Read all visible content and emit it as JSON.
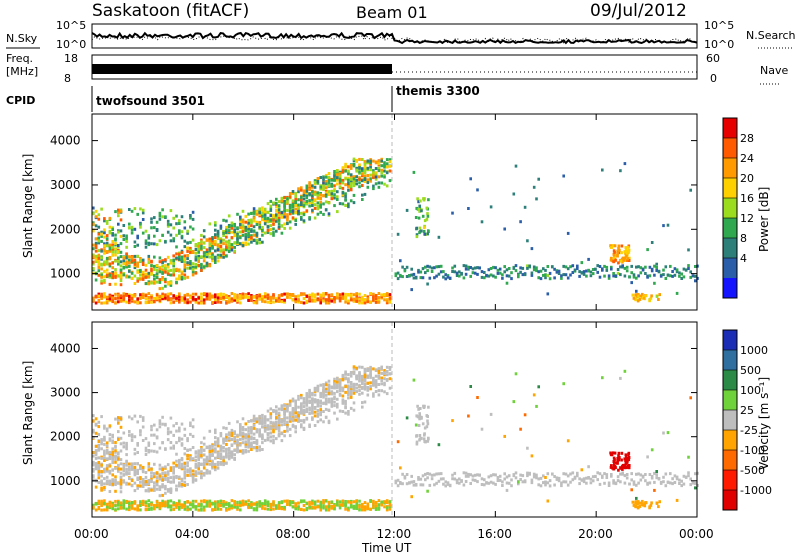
{
  "header": {
    "site": "Saskatoon (fitACF)",
    "beam": "Beam 01",
    "date": "09/Jul/2012"
  },
  "top_panels": {
    "nsky_label": "N.Sky",
    "nsearch_label": "N.Search",
    "noise_ticks": [
      "10^5",
      "10^0"
    ],
    "freq_label_1": "Freq.",
    "freq_label_2": "[MHz]",
    "freq_ticks": [
      "18",
      "8"
    ],
    "nave_ticks": [
      "60",
      "0"
    ],
    "nave_label": "Nave",
    "cpid_label": "CPID",
    "cpid_modes": [
      {
        "name": "twofsound 3501",
        "start_hour": 0,
        "end_hour": 12
      },
      {
        "name": "themis 3300",
        "start_hour": 12,
        "end_hour": 24
      }
    ]
  },
  "power_scale": {
    "label": "Power [dB]",
    "ticks": [
      "28",
      "24",
      "20",
      "16",
      "12",
      "8",
      "4"
    ],
    "colors": [
      "#e60000",
      "#ff5a00",
      "#ff9a00",
      "#ffd000",
      "#9bdc1e",
      "#2fa84f",
      "#2d7f7a",
      "#2a5ea8",
      "#1414ff"
    ]
  },
  "velocity_scale": {
    "label": "Velocity [m s⁻¹]",
    "ticks": [
      "1000",
      "500",
      "100",
      "25",
      "-25",
      "-100",
      "-500",
      "-1000"
    ],
    "colors": [
      "#1a2db4",
      "#2e6fa0",
      "#2a8a46",
      "#6fd23a",
      "#bebebe",
      "#ffa400",
      "#ff6a00",
      "#ff1a00",
      "#e10000"
    ]
  },
  "chart_data": [
    {
      "type": "heatmap",
      "title": "Power",
      "xlabel": "Time UT",
      "ylabel": "Slant Range [km]",
      "xticks": [
        "00:00",
        "04:00",
        "08:00",
        "12:00",
        "16:00",
        "20:00",
        "00:00"
      ],
      "yticks": [
        "1000",
        "2000",
        "3000",
        "4000"
      ],
      "xlim_hours": [
        0,
        24
      ],
      "ylim_km": [
        180,
        4600
      ],
      "colorbar": "Power [dB]",
      "features": [
        {
          "desc": "strong near range echoes",
          "t": [
            0,
            11
          ],
          "range_km": [
            300,
            500
          ],
          "power_db": 26
        },
        {
          "desc": "rising band",
          "t": [
            1.5,
            11.5
          ],
          "range_km_start": 1000,
          "range_km_end": 3500,
          "power_db": 20
        },
        {
          "desc": "patch",
          "t": [
            20.5,
            21.3
          ],
          "range_km": [
            1200,
            1600
          ],
          "power_db": 20
        }
      ]
    },
    {
      "type": "heatmap",
      "title": "Velocity",
      "xlabel": "Time UT",
      "ylabel": "Slant Range [km]",
      "xticks": [
        "00:00",
        "04:00",
        "08:00",
        "12:00",
        "16:00",
        "20:00",
        "00:00"
      ],
      "yticks": [
        "1000",
        "2000",
        "3000",
        "4000"
      ],
      "xlim_hours": [
        0,
        24
      ],
      "ylim_km": [
        180,
        4600
      ],
      "colorbar": "Velocity [m s⁻¹]",
      "features": [
        {
          "desc": "near range",
          "t": [
            0,
            11
          ],
          "range_km": [
            300,
            500
          ],
          "velocity": 100
        },
        {
          "desc": "rising band",
          "t": [
            1,
            11.5
          ],
          "range_km_start": 1800,
          "range_km_end": 3500,
          "velocity": 0
        },
        {
          "desc": "patch",
          "t": [
            20.5,
            21.3
          ],
          "range_km": [
            1200,
            1600
          ],
          "velocity": -1000
        }
      ]
    }
  ]
}
